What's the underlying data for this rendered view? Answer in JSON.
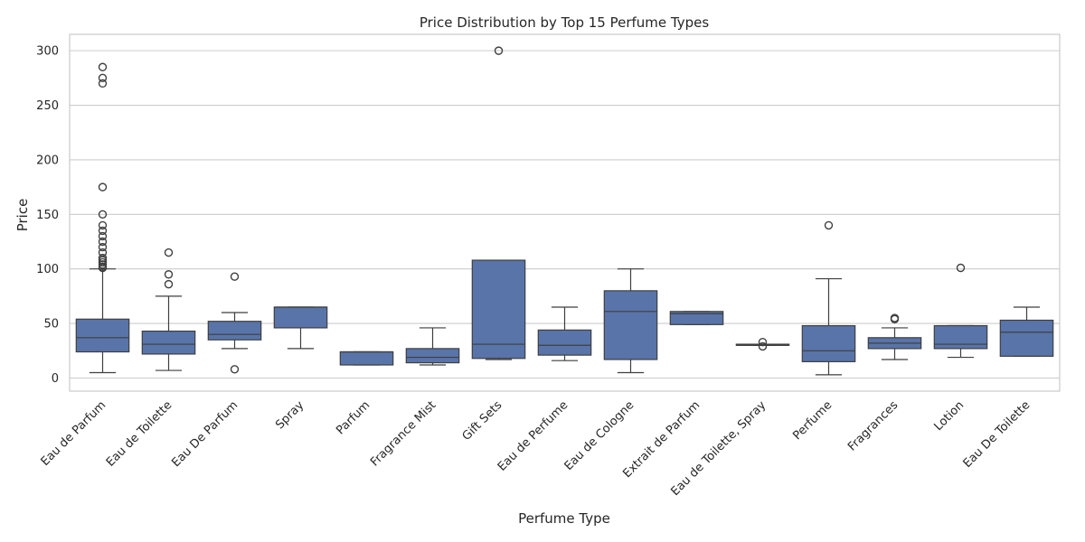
{
  "chart_data": {
    "type": "box",
    "title": "Price Distribution by Top 15 Perfume Types",
    "xlabel": "Perfume Type",
    "ylabel": "Price",
    "ylim": [
      -12,
      315
    ],
    "yticks": [
      0,
      50,
      100,
      150,
      200,
      250,
      300
    ],
    "grid": true,
    "box_color": "#5874a9",
    "line_color": "#3f3f3f",
    "grid_color": "#cccccc",
    "categories": [
      {
        "name": "Eau de Parfum",
        "whisker_low": 5,
        "q1": 24,
        "median": 37,
        "q3": 54,
        "whisker_high": 100,
        "outliers": [
          101,
          102,
          104,
          106,
          108,
          110,
          115,
          120,
          125,
          130,
          135,
          140,
          150,
          175,
          270,
          275,
          285
        ]
      },
      {
        "name": "Eau de Toilette",
        "whisker_low": 7,
        "q1": 22,
        "median": 31,
        "q3": 43,
        "whisker_high": 75,
        "outliers": [
          86,
          95,
          115
        ]
      },
      {
        "name": "Eau De Parfum",
        "whisker_low": 27,
        "q1": 35,
        "median": 40,
        "q3": 52,
        "whisker_high": 60,
        "outliers": [
          8,
          93
        ]
      },
      {
        "name": "Spray",
        "whisker_low": 27,
        "q1": 46,
        "median": 65,
        "q3": 65,
        "whisker_high": 65,
        "outliers": []
      },
      {
        "name": "Parfum",
        "whisker_low": 12,
        "q1": 12,
        "median": 24,
        "q3": 24,
        "whisker_high": 24,
        "outliers": []
      },
      {
        "name": "Fragrance Mist",
        "whisker_low": 12,
        "q1": 14,
        "median": 19,
        "q3": 27,
        "whisker_high": 46,
        "outliers": []
      },
      {
        "name": "Gift Sets",
        "whisker_low": 17,
        "q1": 18,
        "median": 31,
        "q3": 108,
        "whisker_high": 108,
        "outliers": [
          300
        ]
      },
      {
        "name": "Eau de Perfume",
        "whisker_low": 16,
        "q1": 21,
        "median": 30,
        "q3": 44,
        "whisker_high": 65,
        "outliers": []
      },
      {
        "name": "Eau de Cologne",
        "whisker_low": 5,
        "q1": 17,
        "median": 61,
        "q3": 80,
        "whisker_high": 100,
        "outliers": []
      },
      {
        "name": "Extrait de Parfum",
        "whisker_low": 49,
        "q1": 49,
        "median": 59,
        "q3": 61,
        "whisker_high": 61,
        "outliers": []
      },
      {
        "name": "Eau de Toilette, Spray",
        "whisker_low": 30,
        "q1": 30,
        "median": 30,
        "q3": 31,
        "whisker_high": 31,
        "outliers": [
          29,
          33
        ]
      },
      {
        "name": "Perfume",
        "whisker_low": 3,
        "q1": 15,
        "median": 25,
        "q3": 48,
        "whisker_high": 91,
        "outliers": [
          140
        ]
      },
      {
        "name": "Fragrances",
        "whisker_low": 17,
        "q1": 27,
        "median": 32,
        "q3": 37,
        "whisker_high": 46,
        "outliers": [
          54,
          55
        ]
      },
      {
        "name": "Lotion",
        "whisker_low": 19,
        "q1": 27,
        "median": 31,
        "q3": 48,
        "whisker_high": 48,
        "outliers": [
          101
        ]
      },
      {
        "name": "Eau De Toilette",
        "whisker_low": 20,
        "q1": 20,
        "median": 42,
        "q3": 53,
        "whisker_high": 65,
        "outliers": []
      }
    ]
  }
}
